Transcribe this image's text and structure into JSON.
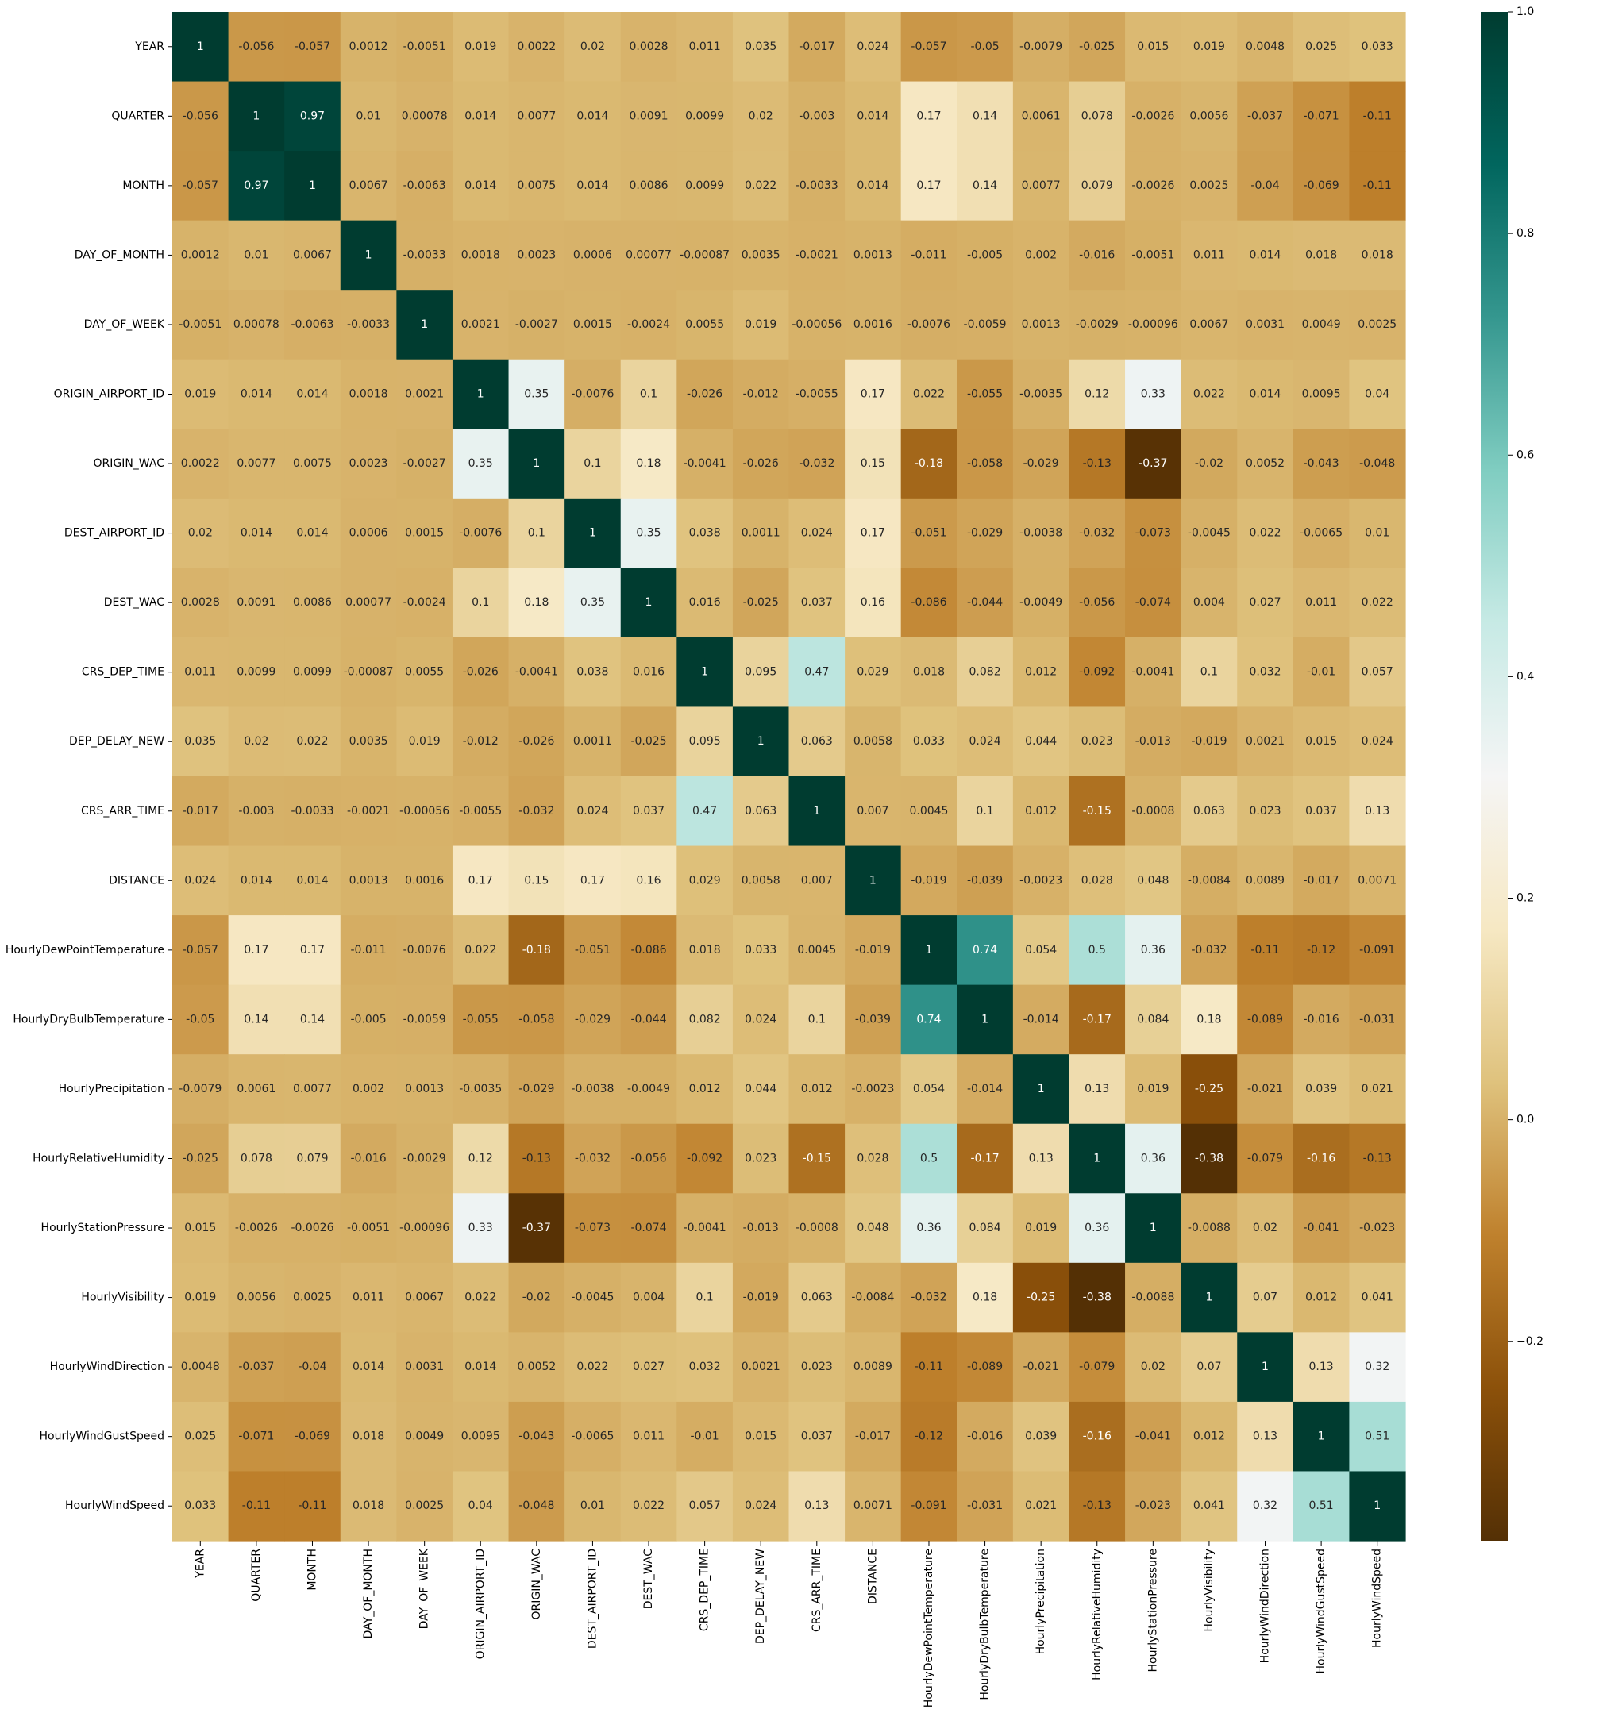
{
  "chart_data": {
    "type": "heatmap",
    "title": "",
    "xlabel": "",
    "ylabel": "",
    "colormap": "BrBG",
    "colormap_stops": [
      "#543005",
      "#8c510a",
      "#bf812d",
      "#dfc27d",
      "#f6e8c3",
      "#f5f5f5",
      "#c7eae5",
      "#80cdc1",
      "#35978f",
      "#01665e",
      "#003c30"
    ],
    "vmin": -0.38,
    "vmax": 1.0,
    "colorbar_ticks": [
      {
        "value": -0.2,
        "label": "−0.2"
      },
      {
        "value": 0.0,
        "label": "0.0"
      },
      {
        "value": 0.2,
        "label": "0.2"
      },
      {
        "value": 0.4,
        "label": "0.4"
      },
      {
        "value": 0.6,
        "label": "0.6"
      },
      {
        "value": 0.8,
        "label": "0.8"
      },
      {
        "value": 1.0,
        "label": "1.0"
      }
    ],
    "labels": [
      "YEAR",
      "QUARTER",
      "MONTH",
      "DAY_OF_MONTH",
      "DAY_OF_WEEK",
      "ORIGIN_AIRPORT_ID",
      "ORIGIN_WAC",
      "DEST_AIRPORT_ID",
      "DEST_WAC",
      "CRS_DEP_TIME",
      "DEP_DELAY_NEW",
      "CRS_ARR_TIME",
      "DISTANCE",
      "HourlyDewPointTemperature",
      "HourlyDryBulbTemperature",
      "HourlyPrecipitation",
      "HourlyRelativeHumidity",
      "HourlyStationPressure",
      "HourlyVisibility",
      "HourlyWindDirection",
      "HourlyWindGustSpeed",
      "HourlyWindSpeed"
    ],
    "matrix": [
      [
        1,
        -0.056,
        -0.057,
        0.0012,
        -0.0051,
        0.019,
        0.0022,
        0.02,
        0.0028,
        0.011,
        0.035,
        -0.017,
        0.024,
        -0.057,
        -0.05,
        -0.0079,
        -0.025,
        0.015,
        0.019,
        0.0048,
        0.025,
        0.033
      ],
      [
        -0.056,
        1,
        0.97,
        0.01,
        0.00078,
        0.014,
        0.0077,
        0.014,
        0.0091,
        0.0099,
        0.02,
        -0.003,
        0.014,
        0.17,
        0.14,
        0.0061,
        0.078,
        -0.0026,
        0.0056,
        -0.037,
        -0.071,
        -0.11
      ],
      [
        -0.057,
        0.97,
        1,
        0.0067,
        -0.0063,
        0.014,
        0.0075,
        0.014,
        0.0086,
        0.0099,
        0.022,
        -0.0033,
        0.014,
        0.17,
        0.14,
        0.0077,
        0.079,
        -0.0026,
        0.0025,
        -0.04,
        -0.069,
        -0.11
      ],
      [
        0.0012,
        0.01,
        0.0067,
        1,
        -0.0033,
        0.0018,
        0.0023,
        0.0006,
        0.00077,
        -0.00087,
        0.0035,
        -0.0021,
        0.0013,
        -0.011,
        -0.005,
        0.002,
        -0.016,
        -0.0051,
        0.011,
        0.014,
        0.018,
        0.018
      ],
      [
        -0.0051,
        0.00078,
        -0.0063,
        -0.0033,
        1,
        0.0021,
        -0.0027,
        0.0015,
        -0.0024,
        0.0055,
        0.019,
        -0.00056,
        0.0016,
        -0.0076,
        -0.0059,
        0.0013,
        -0.0029,
        -0.00096,
        0.0067,
        0.0031,
        0.0049,
        0.0025
      ],
      [
        0.019,
        0.014,
        0.014,
        0.0018,
        0.0021,
        1,
        0.35,
        -0.0076,
        0.1,
        -0.026,
        -0.012,
        -0.0055,
        0.17,
        0.022,
        -0.055,
        -0.0035,
        0.12,
        0.33,
        0.022,
        0.014,
        0.0095,
        0.04
      ],
      [
        0.0022,
        0.0077,
        0.0075,
        0.0023,
        -0.0027,
        0.35,
        1,
        0.1,
        0.18,
        -0.0041,
        -0.026,
        -0.032,
        0.15,
        -0.18,
        -0.058,
        -0.029,
        -0.13,
        -0.37,
        -0.02,
        0.0052,
        -0.043,
        -0.048
      ],
      [
        0.02,
        0.014,
        0.014,
        0.0006,
        0.0015,
        -0.0076,
        0.1,
        1,
        0.35,
        0.038,
        0.0011,
        0.024,
        0.17,
        -0.051,
        -0.029,
        -0.0038,
        -0.032,
        -0.073,
        -0.0045,
        0.022,
        -0.0065,
        0.01
      ],
      [
        0.0028,
        0.0091,
        0.0086,
        0.00077,
        -0.0024,
        0.1,
        0.18,
        0.35,
        1,
        0.016,
        -0.025,
        0.037,
        0.16,
        -0.086,
        -0.044,
        -0.0049,
        -0.056,
        -0.074,
        0.004,
        0.027,
        0.011,
        0.022
      ],
      [
        0.011,
        0.0099,
        0.0099,
        -0.00087,
        0.0055,
        -0.026,
        -0.0041,
        0.038,
        0.016,
        1,
        0.095,
        0.47,
        0.029,
        0.018,
        0.082,
        0.012,
        -0.092,
        -0.0041,
        0.1,
        0.032,
        -0.01,
        0.057
      ],
      [
        0.035,
        0.02,
        0.022,
        0.0035,
        0.019,
        -0.012,
        -0.026,
        0.0011,
        -0.025,
        0.095,
        1,
        0.063,
        0.0058,
        0.033,
        0.024,
        0.044,
        0.023,
        -0.013,
        -0.019,
        0.0021,
        0.015,
        0.024
      ],
      [
        -0.017,
        -0.003,
        -0.0033,
        -0.0021,
        -0.00056,
        -0.0055,
        -0.032,
        0.024,
        0.037,
        0.47,
        0.063,
        1,
        0.007,
        0.0045,
        0.1,
        0.012,
        -0.15,
        -0.0008,
        0.063,
        0.023,
        0.037,
        0.13
      ],
      [
        0.024,
        0.014,
        0.014,
        0.0013,
        0.0016,
        0.17,
        0.15,
        0.17,
        0.16,
        0.029,
        0.0058,
        0.007,
        1,
        -0.019,
        -0.039,
        -0.0023,
        0.028,
        0.048,
        -0.0084,
        0.0089,
        -0.017,
        0.0071
      ],
      [
        -0.057,
        0.17,
        0.17,
        -0.011,
        -0.0076,
        0.022,
        -0.18,
        -0.051,
        -0.086,
        0.018,
        0.033,
        0.0045,
        -0.019,
        1,
        0.74,
        0.054,
        0.5,
        0.36,
        -0.032,
        -0.11,
        -0.12,
        -0.091
      ],
      [
        -0.05,
        0.14,
        0.14,
        -0.005,
        -0.0059,
        -0.055,
        -0.058,
        -0.029,
        -0.044,
        0.082,
        0.024,
        0.1,
        -0.039,
        0.74,
        1,
        -0.014,
        -0.17,
        0.084,
        0.18,
        -0.089,
        -0.016,
        -0.031
      ],
      [
        -0.0079,
        0.0061,
        0.0077,
        0.002,
        0.0013,
        -0.0035,
        -0.029,
        -0.0038,
        -0.0049,
        0.012,
        0.044,
        0.012,
        -0.0023,
        0.054,
        -0.014,
        1,
        0.13,
        0.019,
        -0.25,
        -0.021,
        0.039,
        0.021
      ],
      [
        -0.025,
        0.078,
        0.079,
        -0.016,
        -0.0029,
        0.12,
        -0.13,
        -0.032,
        -0.056,
        -0.092,
        0.023,
        -0.15,
        0.028,
        0.5,
        -0.17,
        0.13,
        1,
        0.36,
        -0.38,
        -0.079,
        -0.16,
        -0.13
      ],
      [
        0.015,
        -0.0026,
        -0.0026,
        -0.0051,
        -0.00096,
        0.33,
        -0.37,
        -0.073,
        -0.074,
        -0.0041,
        -0.013,
        -0.0008,
        0.048,
        0.36,
        0.084,
        0.019,
        0.36,
        1,
        -0.0088,
        0.02,
        -0.041,
        -0.023
      ],
      [
        0.019,
        0.0056,
        0.0025,
        0.011,
        0.0067,
        0.022,
        -0.02,
        -0.0045,
        0.004,
        0.1,
        -0.019,
        0.063,
        -0.0084,
        -0.032,
        0.18,
        -0.25,
        -0.38,
        -0.0088,
        1,
        0.07,
        0.012,
        0.041
      ],
      [
        0.0048,
        -0.037,
        -0.04,
        0.014,
        0.0031,
        0.014,
        0.0052,
        0.022,
        0.027,
        0.032,
        0.0021,
        0.023,
        0.0089,
        -0.11,
        -0.089,
        -0.021,
        -0.079,
        0.02,
        0.07,
        1,
        0.13,
        0.32
      ],
      [
        0.025,
        -0.071,
        -0.069,
        0.018,
        0.0049,
        0.0095,
        -0.043,
        -0.0065,
        0.011,
        -0.01,
        0.015,
        0.037,
        -0.017,
        -0.12,
        -0.016,
        0.039,
        -0.16,
        -0.041,
        0.012,
        0.13,
        1,
        0.51
      ],
      [
        0.033,
        -0.11,
        -0.11,
        0.018,
        0.0025,
        0.04,
        -0.048,
        0.01,
        0.022,
        0.057,
        0.024,
        0.13,
        0.0071,
        -0.091,
        -0.031,
        0.021,
        -0.13,
        -0.023,
        0.041,
        0.32,
        0.51,
        1
      ]
    ]
  }
}
